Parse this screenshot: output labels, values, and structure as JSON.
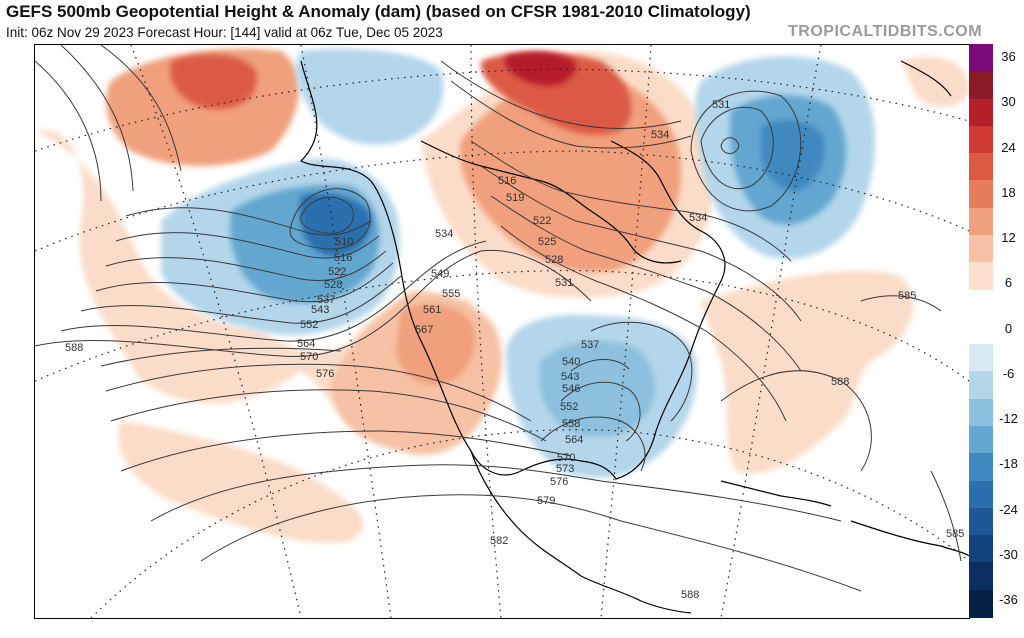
{
  "header": {
    "title": "GEFS 500mb Geopotential Height & Anomaly (dam) (based on CFSR 1981-2010 Climatology)",
    "subtitle": "Init: 06z Nov 29 2023   Forecast Hour: [144]   valid at 06z Tue, Dec 05 2023",
    "brand": "TROPICALTIDBITS.COM"
  },
  "colorbar": {
    "ticks": [
      "36",
      "30",
      "24",
      "18",
      "12",
      "6",
      "0",
      "-6",
      "-12",
      "-18",
      "-24",
      "-30",
      "-36"
    ],
    "colors": [
      "#7a0a78",
      "#8c1a24",
      "#b51f2a",
      "#cf3a33",
      "#dc5a44",
      "#e67c5c",
      "#f0a07c",
      "#f6c1a4",
      "#fbe0cf",
      "#ffffff",
      "#ffffff",
      "#d6e9f4",
      "#b3d6ea",
      "#8cc0de",
      "#63a6d0",
      "#3f89c0",
      "#2a6fae",
      "#1c5796",
      "#14427c",
      "#0c2f62",
      "#081f48"
    ]
  },
  "map": {
    "contour_labels": [
      "588",
      "576",
      "570",
      "564",
      "552",
      "543",
      "537",
      "528",
      "522",
      "516",
      "510",
      "534",
      "549",
      "555",
      "561",
      "567",
      "519",
      "516",
      "522",
      "525",
      "528",
      "531",
      "534",
      "531",
      "537",
      "540",
      "543",
      "546",
      "552",
      "558",
      "564",
      "570",
      "573",
      "576",
      "579",
      "582",
      "585",
      "588",
      "585",
      "588",
      "534"
    ]
  }
}
